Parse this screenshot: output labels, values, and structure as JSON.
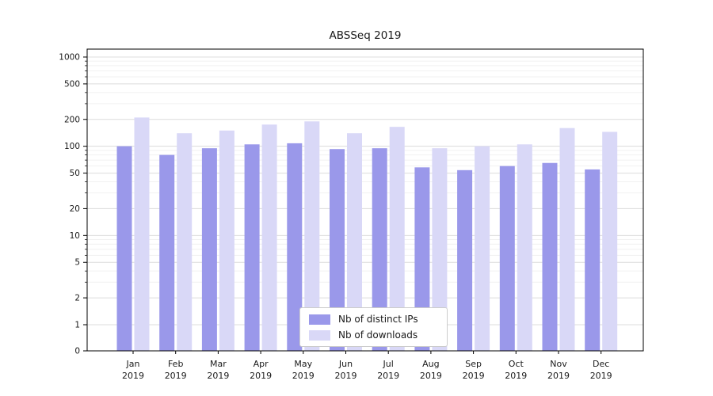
{
  "chart_data": {
    "type": "bar",
    "title": "ABSSeq 2019",
    "categories": [
      "Jan 2019",
      "Feb 2019",
      "Mar 2019",
      "Apr 2019",
      "May 2019",
      "Jun 2019",
      "Jul 2019",
      "Aug 2019",
      "Sep 2019",
      "Oct 2019",
      "Nov 2019",
      "Dec 2019"
    ],
    "series": [
      {
        "name": "Nb of distinct IPs",
        "color": "#9a98ea",
        "values": [
          100,
          80,
          95,
          105,
          108,
          93,
          95,
          58,
          54,
          60,
          65,
          55
        ]
      },
      {
        "name": "Nb of downloads",
        "color": "#d9d8f7",
        "values": [
          210,
          140,
          150,
          175,
          190,
          140,
          165,
          95,
          100,
          105,
          160,
          145
        ]
      }
    ],
    "yticks": [
      0,
      1,
      2,
      5,
      10,
      20,
      50,
      100,
      200,
      500,
      1000
    ],
    "yscale": "log",
    "ylim": [
      0,
      1000
    ],
    "grid": true,
    "legend_position": "lower center"
  }
}
